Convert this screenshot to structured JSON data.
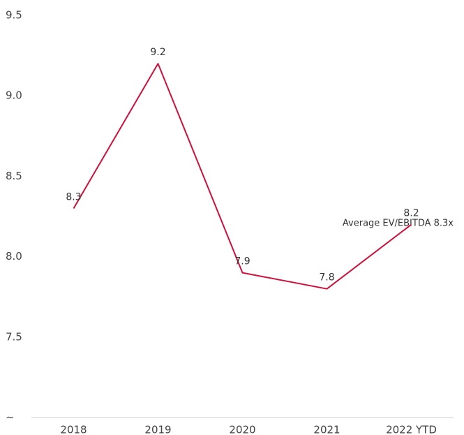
{
  "chart_data": {
    "type": "line",
    "categories": [
      "2018",
      "2019",
      "2020",
      "2021",
      "2022 YTD"
    ],
    "series": [
      {
        "name": "EV/EBITDA",
        "color": "#d0103a",
        "values": [
          8.3,
          9.2,
          7.9,
          7.8,
          8.2
        ]
      }
    ],
    "ylim": [
      7.0,
      9.5
    ],
    "yticks": [
      {
        "value": 7.0,
        "label": "~"
      },
      7.5,
      {
        "value": 8.0,
        "label": "8.0"
      },
      8.5,
      {
        "value": 9.0,
        "label": "9.0"
      },
      9.5
    ],
    "annotation": "Average EV/EBITDA 8.3x",
    "grid": false
  }
}
